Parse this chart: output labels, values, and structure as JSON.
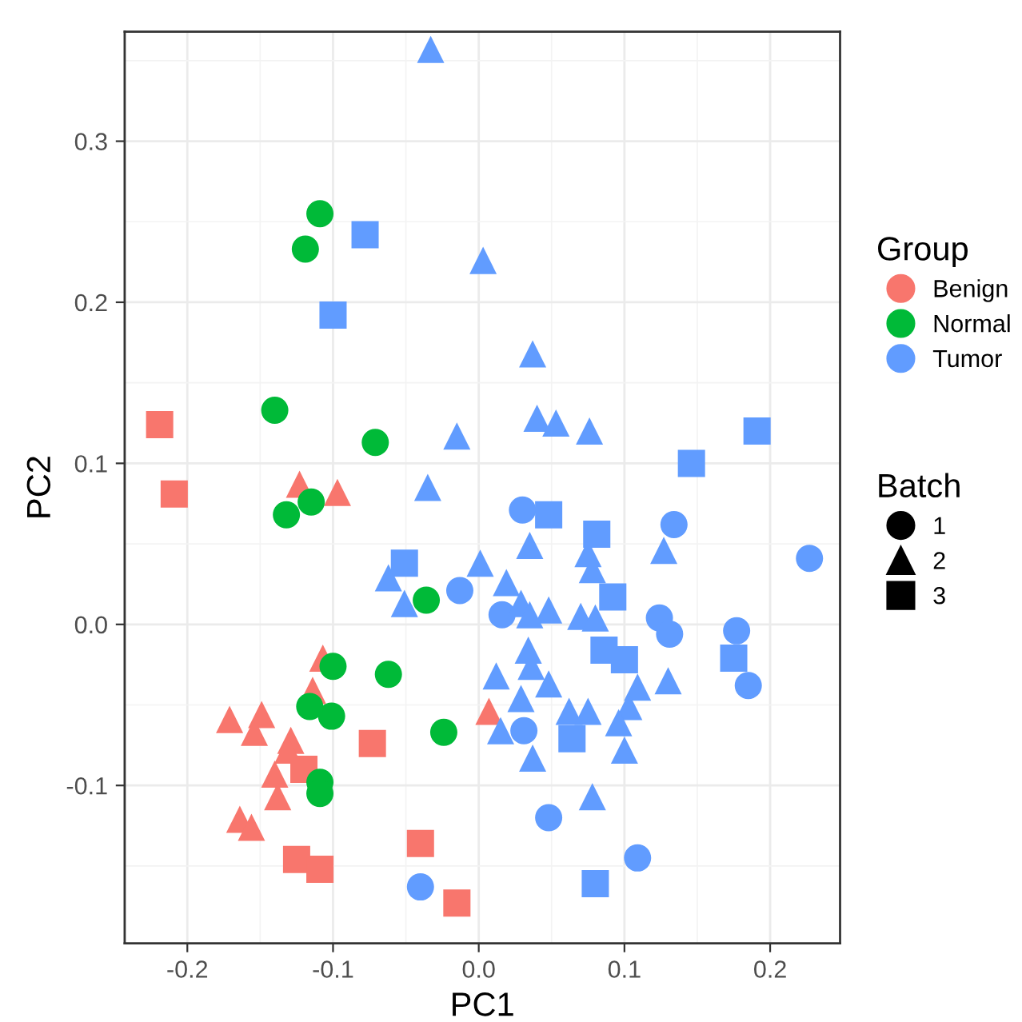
{
  "chart_data": {
    "type": "scatter",
    "xlabel": "PC1",
    "ylabel": "PC2",
    "xlim": [
      -0.243,
      0.248
    ],
    "ylim": [
      -0.198,
      0.368
    ],
    "xticks": [
      -0.2,
      -0.1,
      {
        "value": 0,
        "label": "0.0"
      },
      0.1,
      0.2
    ],
    "yticks": [
      -0.1,
      {
        "value": 0,
        "label": "0.0"
      },
      0.1,
      0.2,
      0.3
    ],
    "grid": true,
    "legend_title": "Group",
    "annotations": [
      "Benign",
      "Normal",
      "Tumor",
      "Batch",
      "1",
      "2",
      "3"
    ],
    "series": [
      {
        "color": "#f8766d",
        "marker": "triangle",
        "x": [
          -0.171,
          -0.149,
          -0.154,
          -0.129,
          -0.131,
          -0.14,
          -0.138,
          -0.164,
          -0.156,
          -0.107,
          -0.114,
          -0.123,
          -0.097,
          0.007
        ],
        "values": [
          -0.059,
          -0.056,
          -0.067,
          -0.072,
          -0.078,
          -0.093,
          -0.107,
          -0.121,
          -0.126,
          -0.021,
          -0.041,
          0.087,
          0.082,
          -0.054
        ]
      },
      {
        "color": "#f8766d",
        "marker": "square",
        "x": [
          -0.219,
          -0.209,
          -0.12,
          -0.073,
          -0.125,
          -0.109,
          -0.04,
          -0.015
        ],
        "values": [
          0.124,
          0.081,
          -0.09,
          -0.074,
          -0.146,
          -0.152,
          -0.136,
          -0.173
        ]
      },
      {
        "color": "#00ba38",
        "marker": "circle",
        "x": [
          -0.109,
          -0.119,
          -0.14,
          -0.071,
          -0.132,
          -0.115,
          -0.1,
          -0.062,
          -0.101,
          -0.116,
          -0.109,
          -0.109,
          -0.024,
          -0.036
        ],
        "values": [
          0.255,
          0.233,
          0.133,
          0.113,
          0.068,
          0.076,
          -0.026,
          -0.031,
          -0.057,
          -0.051,
          -0.098,
          -0.105,
          -0.067,
          0.015
        ]
      },
      {
        "color": "#619cff",
        "marker": "circle",
        "x": [
          0.03,
          0.134,
          0.227,
          0.016,
          0.124,
          0.131,
          0.177,
          0.185,
          0.031,
          0.048,
          0.109,
          -0.013,
          -0.04
        ],
        "values": [
          0.071,
          0.062,
          0.041,
          0.006,
          0.004,
          -0.006,
          -0.004,
          -0.038,
          -0.066,
          -0.12,
          -0.145,
          0.021,
          -0.163
        ]
      },
      {
        "color": "#619cff",
        "marker": "triangle",
        "x": [
          -0.033,
          0.003,
          0.037,
          0.04,
          0.053,
          0.076,
          -0.015,
          -0.035,
          -0.062,
          -0.051,
          0.001,
          0.035,
          0.075,
          0.078,
          0.127,
          0.019,
          0.029,
          0.035,
          0.048,
          0.07,
          0.08,
          0.034,
          0.036,
          0.012,
          0.048,
          0.029,
          0.062,
          0.075,
          0.109,
          0.13,
          0.103,
          0.096,
          0.015,
          0.037,
          0.1,
          0.078
        ],
        "values": [
          0.357,
          0.226,
          0.168,
          0.128,
          0.125,
          0.12,
          0.117,
          0.085,
          0.029,
          0.013,
          0.038,
          0.049,
          0.044,
          0.034,
          0.046,
          0.026,
          0.013,
          0.006,
          0.009,
          0.005,
          0.004,
          -0.016,
          -0.026,
          -0.032,
          -0.037,
          -0.046,
          -0.054,
          -0.054,
          -0.039,
          -0.035,
          -0.051,
          -0.061,
          -0.066,
          -0.083,
          -0.078,
          -0.107
        ]
      },
      {
        "color": "#619cff",
        "marker": "square",
        "x": [
          -0.078,
          -0.1,
          0.191,
          0.146,
          -0.051,
          0.048,
          0.081,
          0.092,
          0.086,
          0.1,
          0.175,
          0.064,
          0.08
        ],
        "values": [
          0.242,
          0.192,
          0.12,
          0.1,
          0.038,
          0.068,
          0.056,
          0.017,
          -0.016,
          -0.022,
          -0.021,
          -0.071,
          -0.161
        ]
      }
    ]
  }
}
